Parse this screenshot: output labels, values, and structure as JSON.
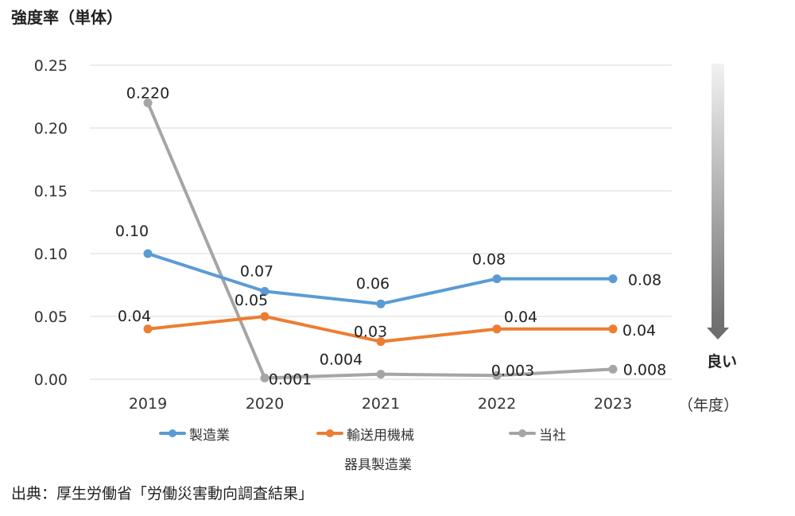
{
  "title": "強度率（単体）",
  "source": "出典：厚生労働省「労働災害動向調査結果」",
  "x_unit": "（年度）",
  "better_label": "良い",
  "legend_extra": "器具製造業",
  "colors": {
    "manufacturing": "#5b9bd5",
    "transport": "#ed7d31",
    "company": "#a5a5a5",
    "grid": "#d9d9d9"
  },
  "chart_data": {
    "type": "line",
    "title": "強度率（単体）",
    "xlabel": "（年度）",
    "ylabel": "",
    "categories": [
      "2019",
      "2020",
      "2021",
      "2022",
      "2023"
    ],
    "ylim": [
      0,
      0.25
    ],
    "yticks": [
      "0.00",
      "0.05",
      "0.10",
      "0.15",
      "0.20",
      "0.25"
    ],
    "grid": true,
    "legend_position": "bottom",
    "series": [
      {
        "name": "製造業",
        "color": "#5b9bd5",
        "values": [
          0.1,
          0.07,
          0.06,
          0.08,
          0.08
        ],
        "labels": [
          "0.10",
          "0.07",
          "0.06",
          "0.08",
          "0.08"
        ]
      },
      {
        "name": "輸送用機械",
        "color": "#ed7d31",
        "values": [
          0.04,
          0.05,
          0.03,
          0.04,
          0.04
        ],
        "labels": [
          "0.04",
          "0.05",
          "0.03",
          "0.04",
          "0.04"
        ]
      },
      {
        "name": "当社",
        "color": "#a5a5a5",
        "values": [
          0.22,
          0.001,
          0.004,
          0.003,
          0.008
        ],
        "labels": [
          "0.220",
          "0.001",
          "0.004",
          "0.003",
          "0.008"
        ]
      }
    ]
  }
}
